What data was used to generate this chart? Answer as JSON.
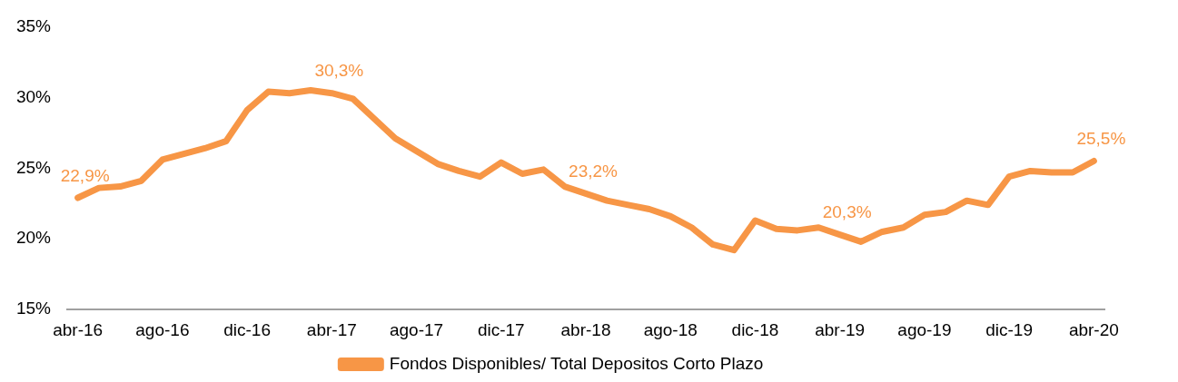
{
  "chart_data": {
    "type": "line",
    "categories": [
      "abr-16",
      null,
      null,
      null,
      "ago-16",
      null,
      null,
      null,
      "dic-16",
      null,
      null,
      null,
      "abr-17",
      null,
      null,
      null,
      "ago-17",
      null,
      null,
      null,
      "dic-17",
      null,
      null,
      null,
      "abr-18",
      null,
      null,
      null,
      "ago-18",
      null,
      null,
      null,
      "dic-18",
      null,
      null,
      null,
      "abr-19",
      null,
      null,
      null,
      "ago-19",
      null,
      null,
      null,
      "dic-19",
      null,
      null,
      null,
      "abr-20"
    ],
    "series": [
      {
        "name": "Fondos Disponibles/ Total Depositos Corto Plazo",
        "color": "#f79646",
        "values": [
          22.9,
          23.6,
          23.7,
          24.1,
          25.6,
          26.0,
          26.4,
          26.9,
          29.1,
          30.4,
          30.3,
          30.5,
          30.3,
          29.9,
          28.5,
          27.1,
          26.2,
          25.3,
          24.8,
          24.4,
          25.4,
          24.6,
          24.9,
          23.7,
          23.2,
          22.7,
          22.4,
          22.1,
          21.6,
          20.8,
          19.6,
          19.2,
          21.3,
          20.7,
          20.6,
          20.8,
          20.3,
          19.8,
          20.5,
          20.8,
          21.7,
          21.9,
          22.7,
          22.4,
          24.4,
          24.8,
          24.7,
          24.7,
          25.5
        ],
        "value_labels": [
          "22,9%",
          null,
          null,
          null,
          null,
          null,
          null,
          null,
          null,
          null,
          null,
          null,
          "30,3%",
          null,
          null,
          null,
          null,
          null,
          null,
          null,
          null,
          null,
          null,
          null,
          "23,2%",
          null,
          null,
          null,
          null,
          null,
          null,
          null,
          null,
          null,
          null,
          null,
          "20,3%",
          null,
          null,
          null,
          null,
          null,
          null,
          null,
          null,
          null,
          null,
          null,
          "25,5%"
        ]
      }
    ],
    "ylim": [
      15,
      35
    ],
    "yticks": [
      {
        "value": 15,
        "label": "15%"
      },
      {
        "value": 20,
        "label": "20%"
      },
      {
        "value": 25,
        "label": "25%"
      },
      {
        "value": 30,
        "label": "30%"
      },
      {
        "value": 35,
        "label": "35%"
      }
    ],
    "legend": "bottom",
    "marker": "none"
  }
}
